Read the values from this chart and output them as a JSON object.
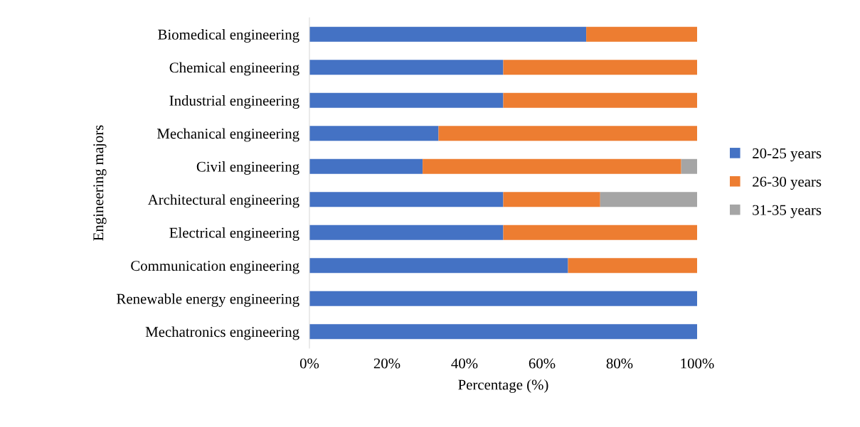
{
  "chart_data": {
    "type": "bar",
    "orientation": "horizontal",
    "stacked": true,
    "xlabel": "Percentage (%)",
    "ylabel": "Engineering majors",
    "categories": [
      "Biomedical engineering",
      "Chemical engineering",
      "Industrial engineering",
      "Mechanical engineering",
      "Civil engineering",
      "Architectural engineering",
      "Electrical engineering",
      "Communication engineering",
      "Renewable energy engineering",
      "Mechatronics engineering"
    ],
    "series": [
      {
        "name": "20-25 years",
        "color": "#4472c4",
        "values": [
          71.4,
          50,
          50,
          33.3,
          29.2,
          50,
          50,
          66.7,
          100,
          100
        ]
      },
      {
        "name": "26-30 years",
        "color": "#ed7d31",
        "values": [
          28.6,
          50,
          50,
          66.7,
          66.7,
          25,
          50,
          33.3,
          0,
          0
        ]
      },
      {
        "name": "31-35 years",
        "color": "#a5a5a5",
        "values": [
          0,
          0,
          0,
          0,
          4.2,
          25,
          0,
          0,
          0,
          0
        ]
      }
    ],
    "xlim": [
      0,
      100
    ],
    "xticks": [
      {
        "value": 0,
        "label": "0%"
      },
      {
        "value": 20,
        "label": "20%"
      },
      {
        "value": 40,
        "label": "40%"
      },
      {
        "value": 60,
        "label": "60%"
      },
      {
        "value": 80,
        "label": "80%"
      },
      {
        "value": 100,
        "label": "100%"
      }
    ],
    "grid": false,
    "legend": "right"
  }
}
